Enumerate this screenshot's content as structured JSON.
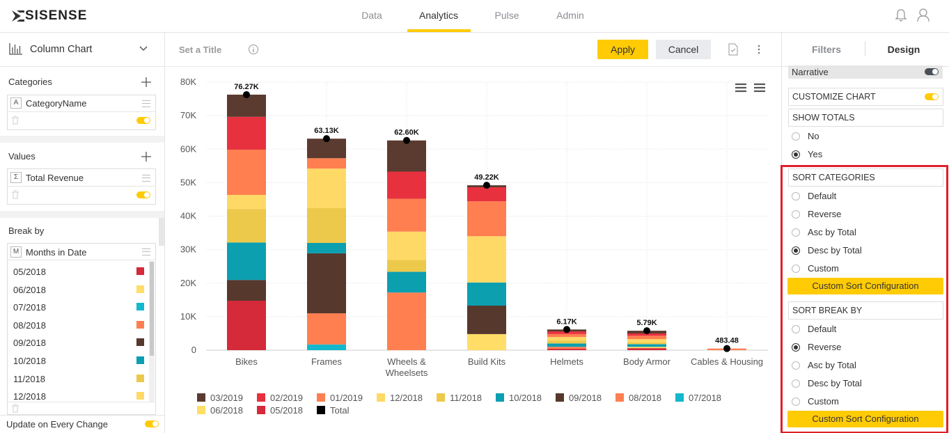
{
  "nav": {
    "logo": "SISENSE",
    "tabs": [
      "Data",
      "Analytics",
      "Pulse",
      "Admin"
    ],
    "active_tab": 1
  },
  "left_panel": {
    "chart_type": "Column Chart",
    "categories": {
      "title": "Categories",
      "icon": "A",
      "field": "CategoryName",
      "enabled": true
    },
    "values": {
      "title": "Values",
      "icon": "Σ",
      "field": "Total Revenue",
      "enabled": true
    },
    "break_by": {
      "title": "Break by",
      "icon": "M",
      "field": "Months in Date",
      "items": [
        {
          "label": "05/2018",
          "color": "#d42a3a"
        },
        {
          "label": "06/2018",
          "color": "#ffdd66"
        },
        {
          "label": "07/2018",
          "color": "#14b8cc"
        },
        {
          "label": "08/2018",
          "color": "#ff7f50"
        },
        {
          "label": "09/2018",
          "color": "#56382d"
        },
        {
          "label": "10/2018",
          "color": "#0c9fb0"
        },
        {
          "label": "11/2018",
          "color": "#ecc94b"
        },
        {
          "label": "12/2018",
          "color": "#ffd966"
        }
      ]
    },
    "update_on_change": {
      "label": "Update on Every Change",
      "enabled": true
    }
  },
  "toolbar": {
    "title_placeholder": "Set a Title",
    "apply": "Apply",
    "cancel": "Cancel"
  },
  "right_panel": {
    "tabs": [
      "Filters",
      "Design"
    ],
    "active_tab": 1,
    "narrative": {
      "label": "Narrative",
      "enabled": false
    },
    "customize_chart": {
      "label": "CUSTOMIZE CHART",
      "enabled": true
    },
    "show_totals": {
      "title": "SHOW TOTALS",
      "options": [
        "No",
        "Yes"
      ],
      "selected": 1
    },
    "sort_categories": {
      "title": "SORT CATEGORIES",
      "options": [
        "Default",
        "Reverse",
        "Asc by Total",
        "Desc by Total",
        "Custom"
      ],
      "selected": 3,
      "button": "Custom Sort Configuration"
    },
    "sort_break_by": {
      "title": "SORT BREAK BY",
      "options": [
        "Default",
        "Reverse",
        "Asc by Total",
        "Desc by Total",
        "Custom"
      ],
      "selected": 1,
      "button": "Custom Sort Configuration"
    }
  },
  "chart_data": {
    "type": "stacked_bar",
    "categories": [
      "Bikes",
      "Frames",
      "Wheels & Wheelsets",
      "Build Kits",
      "Helmets",
      "Body Armor",
      "Cables & Housing"
    ],
    "series": [
      {
        "name": "03/2019",
        "color": "#5b3b2f",
        "values": [
          6620,
          5830,
          9300,
          600,
          570,
          800,
          0
        ]
      },
      {
        "name": "02/2019",
        "color": "#e8313f",
        "values": [
          9800,
          0,
          8100,
          4200,
          800,
          700,
          0
        ]
      },
      {
        "name": "01/2019",
        "color": "#ff7f50",
        "values": [
          13500,
          3100,
          9800,
          10400,
          900,
          1000,
          283.48
        ]
      },
      {
        "name": "12/2018",
        "color": "#ffd966",
        "values": [
          4200,
          11800,
          8500,
          13820,
          1100,
          1000,
          0
        ]
      },
      {
        "name": "11/2018",
        "color": "#ecc94b",
        "values": [
          10000,
          10400,
          3500,
          0,
          800,
          500,
          0
        ]
      },
      {
        "name": "10/2018",
        "color": "#0c9fb0",
        "values": [
          11200,
          3100,
          6200,
          6900,
          1000,
          800,
          0
        ]
      },
      {
        "name": "09/2018",
        "color": "#56382d",
        "values": [
          6200,
          17900,
          0,
          8500,
          0,
          0,
          0
        ]
      },
      {
        "name": "08/2018",
        "color": "#ff7f50",
        "values": [
          0,
          9300,
          17200,
          0,
          600,
          0,
          200
        ]
      },
      {
        "name": "07/2018",
        "color": "#14b8cc",
        "values": [
          0,
          1700,
          0,
          0,
          0,
          0,
          0
        ]
      },
      {
        "name": "06/2018",
        "color": "#ffdd66",
        "values": [
          0,
          0,
          0,
          4800,
          0,
          390,
          0
        ]
      },
      {
        "name": "05/2018",
        "color": "#d42a3a",
        "values": [
          14750,
          0,
          0,
          0,
          400,
          600,
          0
        ]
      }
    ],
    "total": {
      "name": "Total",
      "color": "#000000",
      "values": [
        76270,
        63130,
        62600,
        49220,
        6170,
        5790,
        483.48
      ],
      "value_labels": [
        "76.27K",
        "63.13K",
        "62.60K",
        "49.22K",
        "6.17K",
        "5.79K",
        "483.48"
      ]
    },
    "ylim": [
      0,
      80000
    ],
    "yticks": [
      0,
      {
        "value": 10000,
        "label": "10K"
      },
      {
        "value": 20000,
        "label": "20K"
      },
      {
        "value": 30000,
        "label": "30K"
      },
      {
        "value": 40000,
        "label": "40K"
      },
      {
        "value": 50000,
        "label": "50K"
      },
      {
        "value": 60000,
        "label": "60K"
      },
      {
        "value": 70000,
        "label": "70K"
      },
      {
        "value": 80000,
        "label": "80K"
      }
    ],
    "grid": true
  }
}
